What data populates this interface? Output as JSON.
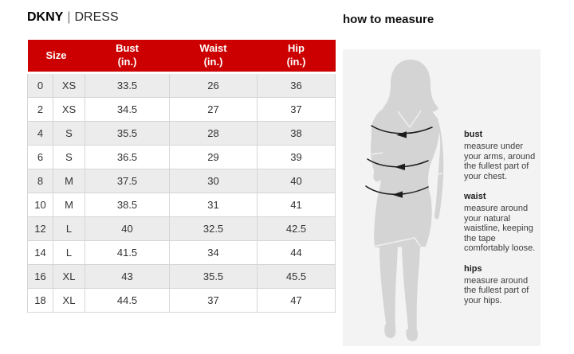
{
  "title": {
    "brand": "DKNY",
    "separator": "|",
    "category": "DRESS"
  },
  "size_chart": {
    "header": {
      "size_label": "Size",
      "columns": [
        {
          "label": "Bust",
          "unit": "(in.)"
        },
        {
          "label": "Waist",
          "unit": "(in.)"
        },
        {
          "label": "Hip",
          "unit": "(in.)"
        }
      ]
    },
    "rows": [
      {
        "size_num": "0",
        "size_alpha": "XS",
        "bust": "33.5",
        "waist": "26",
        "hip": "36"
      },
      {
        "size_num": "2",
        "size_alpha": "XS",
        "bust": "34.5",
        "waist": "27",
        "hip": "37"
      },
      {
        "size_num": "4",
        "size_alpha": "S",
        "bust": "35.5",
        "waist": "28",
        "hip": "38"
      },
      {
        "size_num": "6",
        "size_alpha": "S",
        "bust": "36.5",
        "waist": "29",
        "hip": "39"
      },
      {
        "size_num": "8",
        "size_alpha": "M",
        "bust": "37.5",
        "waist": "30",
        "hip": "40"
      },
      {
        "size_num": "10",
        "size_alpha": "M",
        "bust": "38.5",
        "waist": "31",
        "hip": "41"
      },
      {
        "size_num": "12",
        "size_alpha": "L",
        "bust": "40",
        "waist": "32.5",
        "hip": "42.5"
      },
      {
        "size_num": "14",
        "size_alpha": "L",
        "bust": "41.5",
        "waist": "34",
        "hip": "44"
      },
      {
        "size_num": "16",
        "size_alpha": "XL",
        "bust": "43",
        "waist": "35.5",
        "hip": "45.5"
      },
      {
        "size_num": "18",
        "size_alpha": "XL",
        "bust": "44.5",
        "waist": "37",
        "hip": "47"
      }
    ]
  },
  "measure_guide": {
    "title": "how to measure",
    "figure": "woman-silhouette-with-measurement-arrows",
    "sections": [
      {
        "heading": "bust",
        "text": "measure under your arms, around the fullest part of your chest."
      },
      {
        "heading": "waist",
        "text": "measure around your natural waistline, keeping the tape comfortably loose."
      },
      {
        "heading": "hips",
        "text": "measure around the fullest part of your hips."
      }
    ]
  },
  "colors": {
    "header_red": "#CC0000",
    "header_text": "#FFFFFF",
    "row_alt_bg": "#ECECEC",
    "table_border": "#D6D6D6",
    "panel_bg": "#F3F3F3",
    "silhouette": "#D4D4D4",
    "arrow": "#1C1C1C",
    "text_dark": "#333333"
  }
}
